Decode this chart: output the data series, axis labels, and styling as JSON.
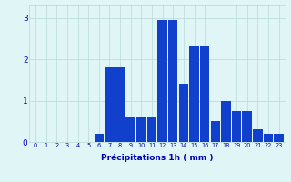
{
  "hours": [
    0,
    1,
    2,
    3,
    4,
    5,
    6,
    7,
    8,
    9,
    10,
    11,
    12,
    13,
    14,
    15,
    16,
    17,
    18,
    19,
    20,
    21,
    22,
    23
  ],
  "values": [
    0.0,
    0.0,
    0.0,
    0.0,
    0.0,
    0.0,
    0.2,
    1.8,
    1.8,
    0.6,
    0.6,
    0.6,
    2.95,
    2.95,
    1.4,
    2.3,
    2.3,
    0.5,
    1.0,
    0.75,
    0.75,
    0.3,
    0.2,
    0.2
  ],
  "bar_color": "#1040cc",
  "background_color": "#e0f5f5",
  "grid_color": "#b8d8d8",
  "text_color": "#0000bb",
  "xlabel": "Précipitations 1h ( mm )",
  "ylim": [
    0,
    3.3
  ],
  "yticks": [
    0,
    1,
    2,
    3
  ]
}
